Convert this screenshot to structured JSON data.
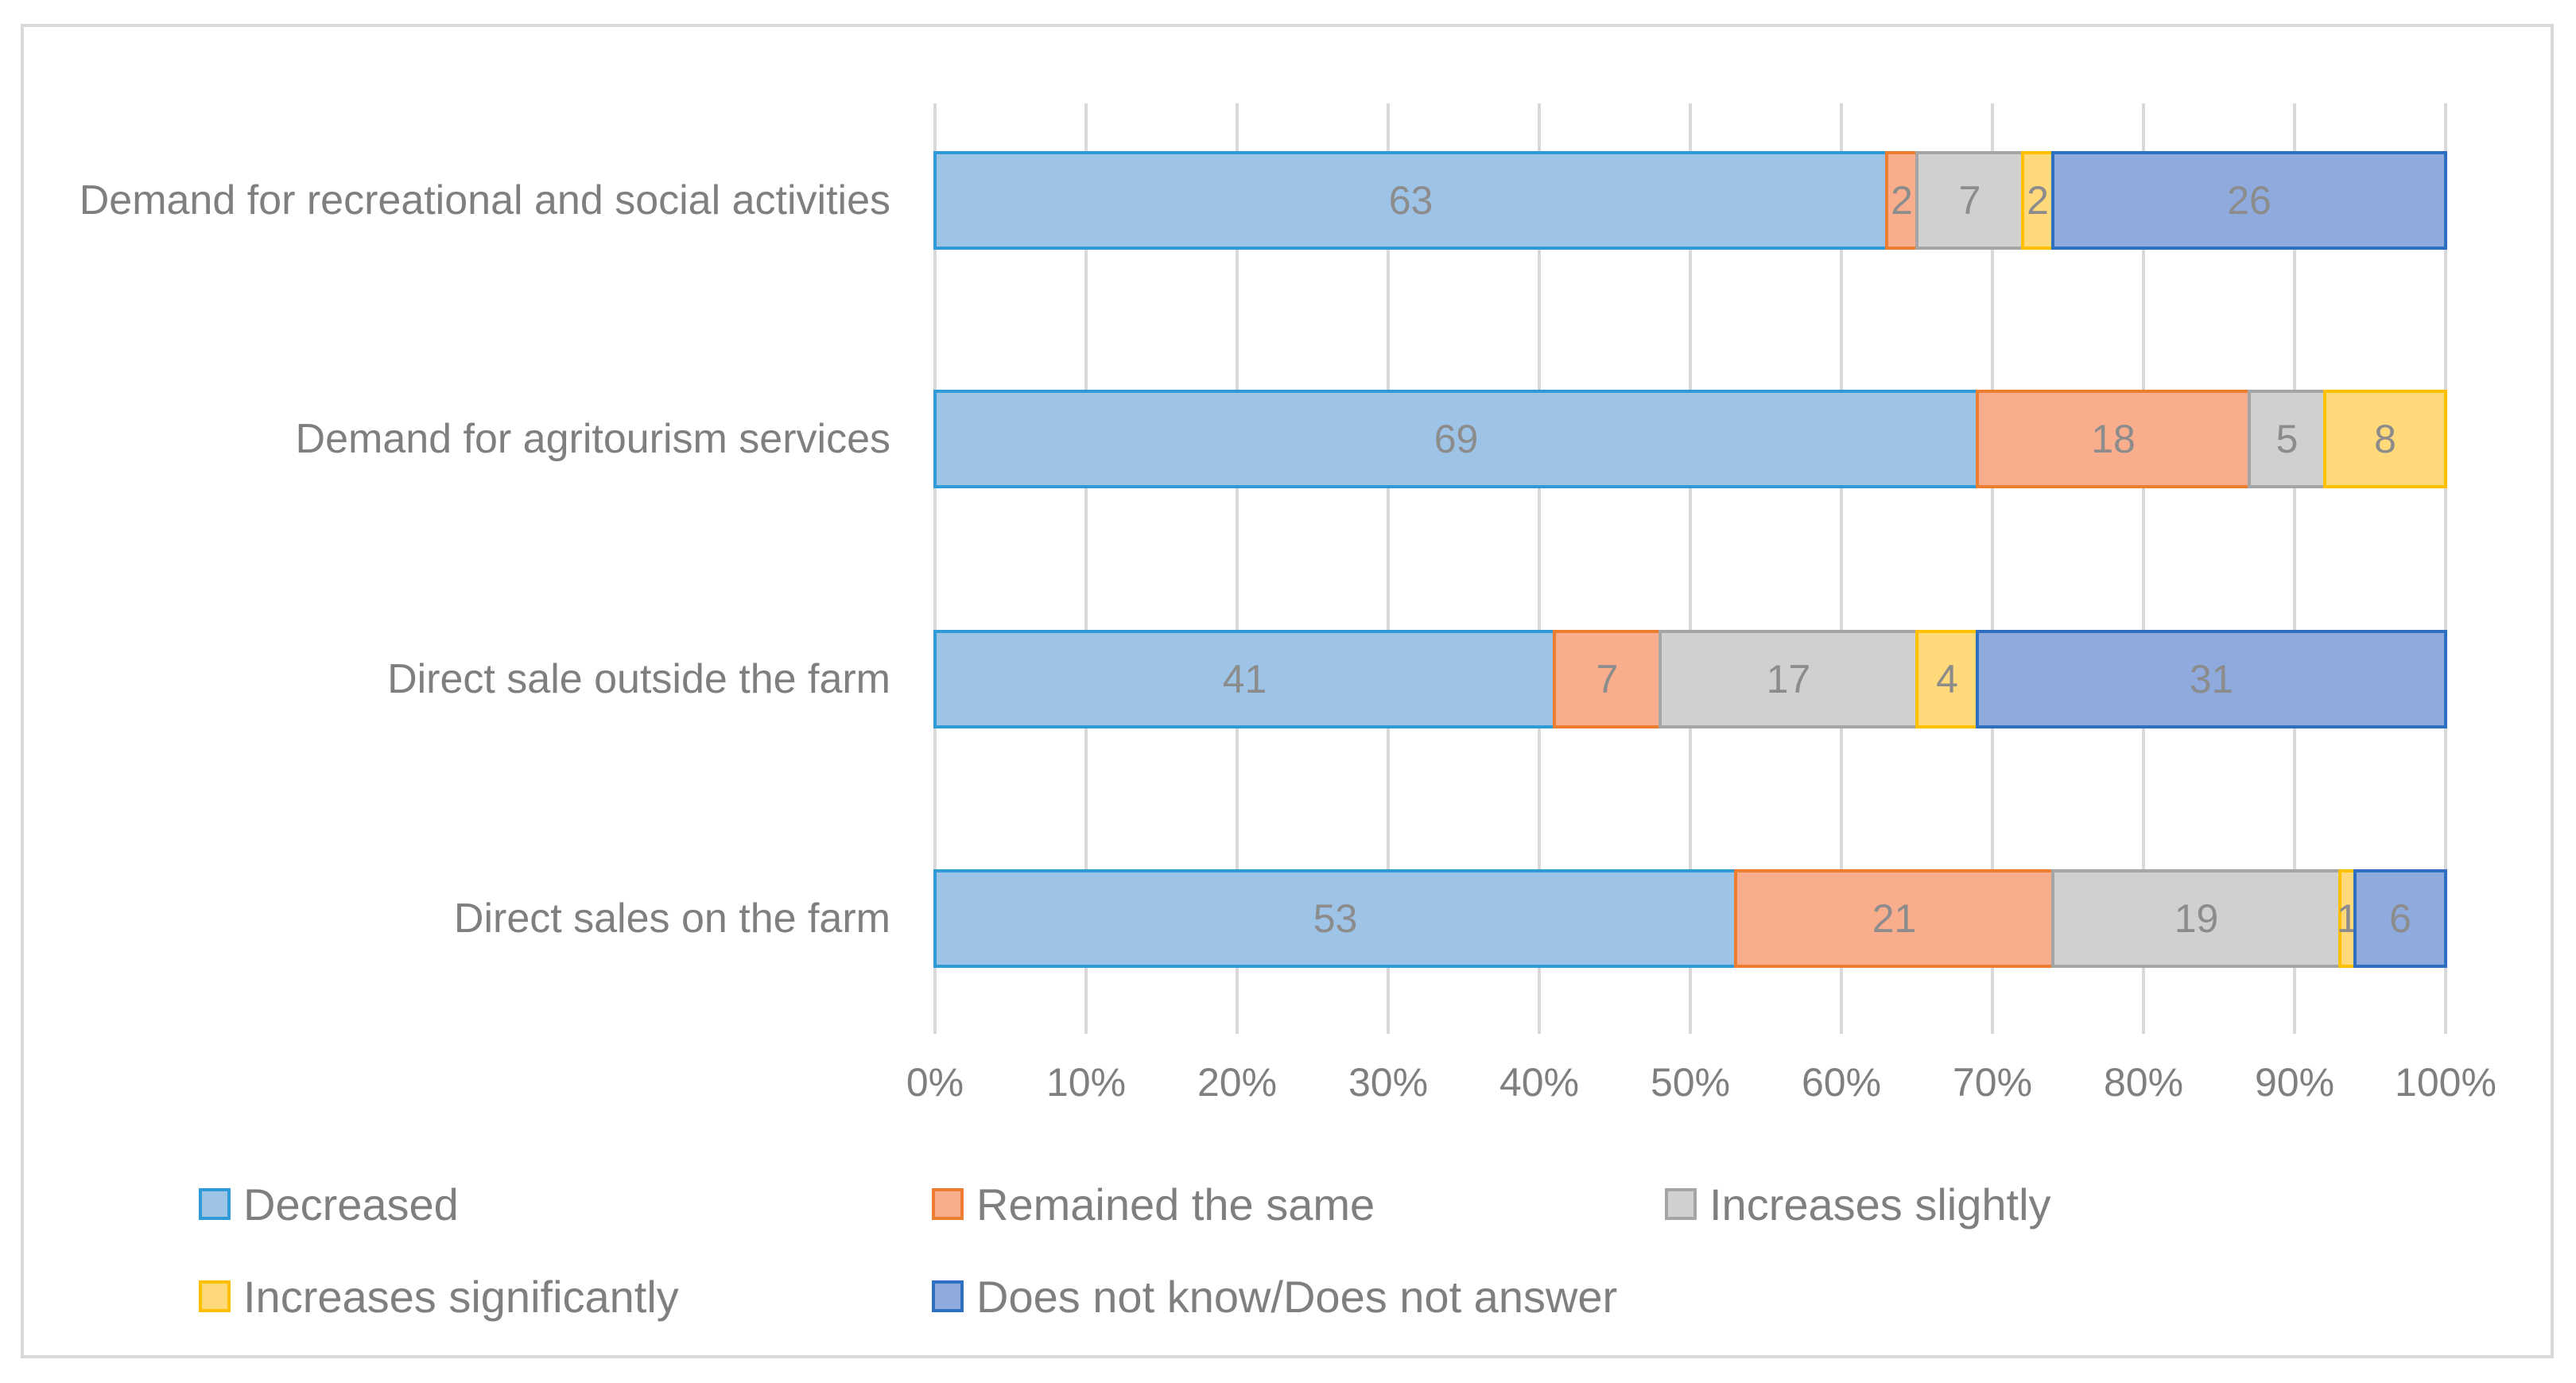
{
  "chart_data": {
    "type": "bar",
    "orientation": "horizontal",
    "stacked": "percent",
    "categories": [
      "Demand for recreational and social activities",
      "Demand for agritourism services",
      "Direct sale outside the farm",
      "Direct sales on the farm"
    ],
    "series": [
      {
        "name": "Decreased",
        "values": [
          63,
          69,
          41,
          53
        ],
        "fill": "#9dc3e6",
        "stroke": "#2e9ad6"
      },
      {
        "name": "Remained the same",
        "values": [
          2,
          18,
          7,
          21
        ],
        "fill": "#f8ad8d",
        "stroke": "#ed7d31"
      },
      {
        "name": "Increases slightly",
        "values": [
          7,
          5,
          17,
          19
        ],
        "fill": "#d0d0d0",
        "stroke": "#a5a5a5"
      },
      {
        "name": "Increases significantly",
        "values": [
          2,
          8,
          4,
          1
        ],
        "fill": "#ffd97a",
        "stroke": "#ffc000"
      },
      {
        "name": "Does not know/Does not answer",
        "values": [
          26,
          0,
          31,
          6
        ],
        "fill": "#8faadc",
        "stroke": "#2f6fc2"
      }
    ],
    "xaxis": {
      "ticks": [
        "0%",
        "10%",
        "20%",
        "30%",
        "40%",
        "50%",
        "60%",
        "70%",
        "80%",
        "90%",
        "100%"
      ],
      "range": [
        0,
        100
      ]
    },
    "title": "",
    "xlabel": "",
    "ylabel": "",
    "grid": true,
    "legend_position": "bottom"
  }
}
